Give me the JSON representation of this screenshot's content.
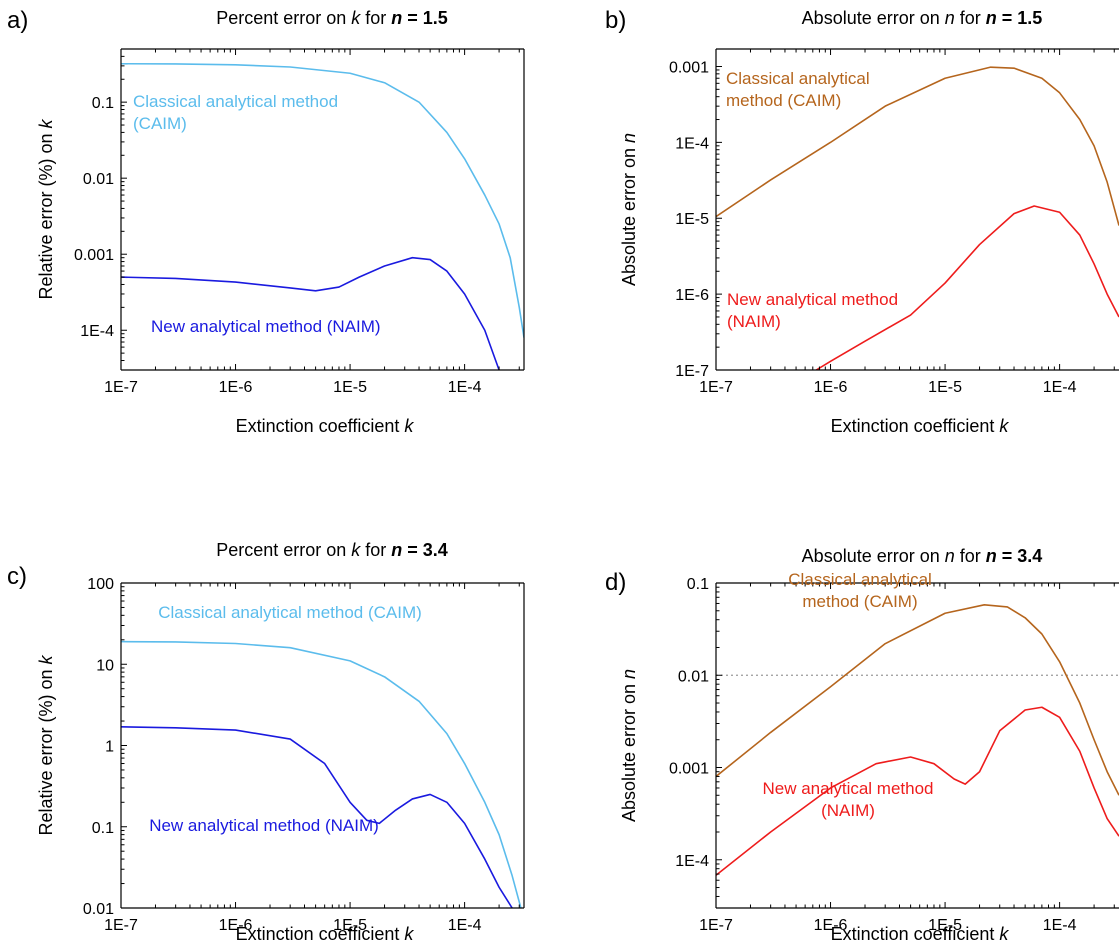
{
  "panels_note": "",
  "chart_data": [
    {
      "type": "line",
      "panel_letter": "a)",
      "title": {
        "prefix": "Percent error on ",
        "var": "k",
        "mid": " for ",
        "nvar": "n",
        "eq": " = 1.5"
      },
      "xlabel": {
        "text": "Extinction coefficient ",
        "var": "k"
      },
      "ylabel": {
        "text": "Relative error (%) on ",
        "var": "k"
      },
      "x_scale": "log",
      "y_scale": "log",
      "xlim": [
        1e-07,
        0.00033
      ],
      "ylim": [
        3e-05,
        0.5
      ],
      "x_ticks": [
        {
          "v": 1e-07,
          "label": "1E-7"
        },
        {
          "v": 1e-06,
          "label": "1E-6"
        },
        {
          "v": 1e-05,
          "label": "1E-5"
        },
        {
          "v": 0.0001,
          "label": "1E-4"
        }
      ],
      "y_ticks": [
        {
          "v": 0.0001,
          "label": "1E-4"
        },
        {
          "v": 0.001,
          "label": "0.001"
        },
        {
          "v": 0.01,
          "label": "0.01"
        },
        {
          "v": 0.1,
          "label": "0.1"
        }
      ],
      "hline": null,
      "series": [
        {
          "name": "Classical analytical method (CAIM)",
          "color": "#5bbcec",
          "points": [
            [
              1e-07,
              0.32
            ],
            [
              3e-07,
              0.318
            ],
            [
              1e-06,
              0.31
            ],
            [
              3e-06,
              0.29
            ],
            [
              1e-05,
              0.24
            ],
            [
              2e-05,
              0.18
            ],
            [
              4e-05,
              0.1
            ],
            [
              7e-05,
              0.04
            ],
            [
              0.0001,
              0.018
            ],
            [
              0.00015,
              0.006
            ],
            [
              0.0002,
              0.0025
            ],
            [
              0.00025,
              0.0009
            ],
            [
              0.0003,
              0.0002
            ],
            [
              0.00033,
              8e-05
            ]
          ]
        },
        {
          "name": "New analytical method (NAIM)",
          "color": "#1a1adf",
          "points": [
            [
              1e-07,
              0.0005
            ],
            [
              3e-07,
              0.00048
            ],
            [
              1e-06,
              0.00043
            ],
            [
              3e-06,
              0.00036
            ],
            [
              5e-06,
              0.00033
            ],
            [
              8e-06,
              0.00037
            ],
            [
              1.2e-05,
              0.0005
            ],
            [
              2e-05,
              0.0007
            ],
            [
              3.5e-05,
              0.0009
            ],
            [
              5e-05,
              0.00085
            ],
            [
              7e-05,
              0.0006
            ],
            [
              0.0001,
              0.0003
            ],
            [
              0.00015,
              0.0001
            ],
            [
              0.0002,
              3e-05
            ]
          ]
        }
      ],
      "annotations": [
        {
          "lines": [
            "Classical analytical method",
            "(CAIM)"
          ],
          "color": "#5bbcec"
        },
        {
          "lines": [
            "New analytical method (NAIM)"
          ],
          "color": "#1a1adf"
        }
      ]
    },
    {
      "type": "line",
      "panel_letter": "b)",
      "title": {
        "prefix": "Absolute error on ",
        "var": "n",
        "mid": " for ",
        "nvar": "n",
        "eq": " = 1.5"
      },
      "xlabel": {
        "text": "Extinction coefficient ",
        "var": "k"
      },
      "ylabel": {
        "text": "Absolute error on ",
        "var": "n"
      },
      "x_scale": "log",
      "y_scale": "log",
      "xlim": [
        1e-07,
        0.00033
      ],
      "ylim": [
        1e-07,
        0.0017
      ],
      "x_ticks": [
        {
          "v": 1e-07,
          "label": "1E-7"
        },
        {
          "v": 1e-06,
          "label": "1E-6"
        },
        {
          "v": 1e-05,
          "label": "1E-5"
        },
        {
          "v": 0.0001,
          "label": "1E-4"
        }
      ],
      "y_ticks": [
        {
          "v": 1e-07,
          "label": "1E-7"
        },
        {
          "v": 1e-06,
          "label": "1E-6"
        },
        {
          "v": 1e-05,
          "label": "1E-5"
        },
        {
          "v": 0.0001,
          "label": "1E-4"
        },
        {
          "v": 0.001,
          "label": "0.001"
        }
      ],
      "hline": null,
      "series": [
        {
          "name": "Classical analytical method (CAIM)",
          "color": "#b5651d",
          "points": [
            [
              1e-07,
              1.05e-05
            ],
            [
              3e-07,
              3.2e-05
            ],
            [
              1e-06,
              0.0001
            ],
            [
              3e-06,
              0.0003
            ],
            [
              1e-05,
              0.0007
            ],
            [
              2.5e-05,
              0.00098
            ],
            [
              4e-05,
              0.00095
            ],
            [
              7e-05,
              0.0007
            ],
            [
              0.0001,
              0.00045
            ],
            [
              0.00015,
              0.0002
            ],
            [
              0.0002,
              9e-05
            ],
            [
              0.00026,
              3e-05
            ],
            [
              0.00033,
              8e-06
            ]
          ]
        },
        {
          "name": "New analytical method (NAIM)",
          "color": "#ee1c1c",
          "points": [
            [
              7.5e-07,
              1e-07
            ],
            [
              1e-06,
              1.3e-07
            ],
            [
              2e-06,
              2.4e-07
            ],
            [
              5e-06,
              5.3e-07
            ],
            [
              1e-05,
              1.4e-06
            ],
            [
              2e-05,
              4.5e-06
            ],
            [
              4e-05,
              1.15e-05
            ],
            [
              6e-05,
              1.45e-05
            ],
            [
              0.0001,
              1.2e-05
            ],
            [
              0.00015,
              6e-06
            ],
            [
              0.0002,
              2.5e-06
            ],
            [
              0.00026,
              1e-06
            ],
            [
              0.00033,
              5e-07
            ]
          ]
        }
      ],
      "annotations": [
        {
          "lines": [
            "Classical analytical",
            "method (CAIM)"
          ],
          "color": "#b5651d"
        },
        {
          "lines": [
            "New analytical method",
            "(NAIM)"
          ],
          "color": "#ee1c1c"
        }
      ]
    },
    {
      "type": "line",
      "panel_letter": "c)",
      "title": {
        "prefix": "Percent error on ",
        "var": "k",
        "mid": " for ",
        "nvar": "n",
        "eq": " = 3.4"
      },
      "xlabel": {
        "text": "Extinction coefficient ",
        "var": "k"
      },
      "ylabel": {
        "text": "Relative error (%) on ",
        "var": "k"
      },
      "x_scale": "log",
      "y_scale": "log",
      "xlim": [
        1e-07,
        0.00033
      ],
      "ylim": [
        0.01,
        100
      ],
      "x_ticks": [
        {
          "v": 1e-07,
          "label": "1E-7"
        },
        {
          "v": 1e-06,
          "label": "1E-6"
        },
        {
          "v": 1e-05,
          "label": "1E-5"
        },
        {
          "v": 0.0001,
          "label": "1E-4"
        }
      ],
      "y_ticks": [
        {
          "v": 0.01,
          "label": "0.01"
        },
        {
          "v": 0.1,
          "label": "0.1"
        },
        {
          "v": 1,
          "label": "1"
        },
        {
          "v": 10,
          "label": "10"
        },
        {
          "v": 100,
          "label": "100"
        }
      ],
      "hline": null,
      "series": [
        {
          "name": "Classical analytical method (CAIM)",
          "color": "#5bbcec",
          "points": [
            [
              1e-07,
              19
            ],
            [
              3e-07,
              18.8
            ],
            [
              1e-06,
              18
            ],
            [
              3e-06,
              16
            ],
            [
              1e-05,
              11
            ],
            [
              2e-05,
              7
            ],
            [
              4e-05,
              3.5
            ],
            [
              7e-05,
              1.4
            ],
            [
              0.0001,
              0.6
            ],
            [
              0.00015,
              0.2
            ],
            [
              0.0002,
              0.08
            ],
            [
              0.00026,
              0.025
            ],
            [
              0.00031,
              0.01
            ]
          ]
        },
        {
          "name": "New analytical method (NAIM)",
          "color": "#1a1adf",
          "points": [
            [
              1e-07,
              1.7
            ],
            [
              3e-07,
              1.65
            ],
            [
              1e-06,
              1.55
            ],
            [
              3e-06,
              1.2
            ],
            [
              6e-06,
              0.6
            ],
            [
              1e-05,
              0.2
            ],
            [
              1.4e-05,
              0.12
            ],
            [
              1.8e-05,
              0.11
            ],
            [
              2.5e-05,
              0.16
            ],
            [
              3.5e-05,
              0.22
            ],
            [
              5e-05,
              0.25
            ],
            [
              7e-05,
              0.2
            ],
            [
              0.0001,
              0.11
            ],
            [
              0.00015,
              0.04
            ],
            [
              0.0002,
              0.018
            ],
            [
              0.00026,
              0.01
            ]
          ]
        }
      ],
      "annotations": [
        {
          "lines": [
            "Classical analytical method (CAIM)"
          ],
          "color": "#5bbcec"
        },
        {
          "lines": [
            "New analytical method (NAIM)"
          ],
          "color": "#1a1adf"
        }
      ]
    },
    {
      "type": "line",
      "panel_letter": "d)",
      "title": {
        "prefix": "Absolute error on ",
        "var": "n",
        "mid": " for ",
        "nvar": "n",
        "eq": " = 3.4"
      },
      "xlabel": {
        "text": "Extinction coefficient ",
        "var": "k"
      },
      "ylabel": {
        "text": "Absolute error on ",
        "var": "n"
      },
      "x_scale": "log",
      "y_scale": "log",
      "xlim": [
        1e-07,
        0.00033
      ],
      "ylim": [
        3e-05,
        0.1
      ],
      "x_ticks": [
        {
          "v": 1e-07,
          "label": "1E-7"
        },
        {
          "v": 1e-06,
          "label": "1E-6"
        },
        {
          "v": 1e-05,
          "label": "1E-5"
        },
        {
          "v": 0.0001,
          "label": "1E-4"
        }
      ],
      "y_ticks": [
        {
          "v": 0.0001,
          "label": "1E-4"
        },
        {
          "v": 0.001,
          "label": "0.001"
        },
        {
          "v": 0.01,
          "label": "0.01"
        },
        {
          "v": 0.1,
          "label": "0.1"
        }
      ],
      "hline": 0.01,
      "series": [
        {
          "name": "Classical analytical method (CAIM)",
          "color": "#b5651d",
          "points": [
            [
              1e-07,
              0.0008
            ],
            [
              3e-07,
              0.0024
            ],
            [
              1e-06,
              0.0075
            ],
            [
              3e-06,
              0.022
            ],
            [
              1e-05,
              0.047
            ],
            [
              2.2e-05,
              0.058
            ],
            [
              3.5e-05,
              0.055
            ],
            [
              5e-05,
              0.042
            ],
            [
              7e-05,
              0.028
            ],
            [
              0.0001,
              0.014
            ],
            [
              0.00015,
              0.005
            ],
            [
              0.0002,
              0.002
            ],
            [
              0.00026,
              0.0009
            ],
            [
              0.00033,
              0.0005
            ]
          ]
        },
        {
          "name": "New analytical method (NAIM)",
          "color": "#ee1c1c",
          "points": [
            [
              1e-07,
              6.8e-05
            ],
            [
              3e-07,
              0.0002
            ],
            [
              1e-06,
              0.0006
            ],
            [
              2.5e-06,
              0.0011
            ],
            [
              5e-06,
              0.0013
            ],
            [
              8e-06,
              0.0011
            ],
            [
              1.2e-05,
              0.00075
            ],
            [
              1.5e-05,
              0.00066
            ],
            [
              2e-05,
              0.0009
            ],
            [
              3e-05,
              0.0025
            ],
            [
              5e-05,
              0.0042
            ],
            [
              7e-05,
              0.0045
            ],
            [
              0.0001,
              0.0035
            ],
            [
              0.00015,
              0.0015
            ],
            [
              0.0002,
              0.0006
            ],
            [
              0.00026,
              0.00028
            ],
            [
              0.00033,
              0.00018
            ]
          ]
        }
      ],
      "annotations": [
        {
          "lines": [
            "Classical analytical",
            "method (CAIM)"
          ],
          "color": "#b5651d"
        },
        {
          "lines": [
            "New analytical method",
            "(NAIM)"
          ],
          "color": "#ee1c1c"
        }
      ]
    }
  ]
}
